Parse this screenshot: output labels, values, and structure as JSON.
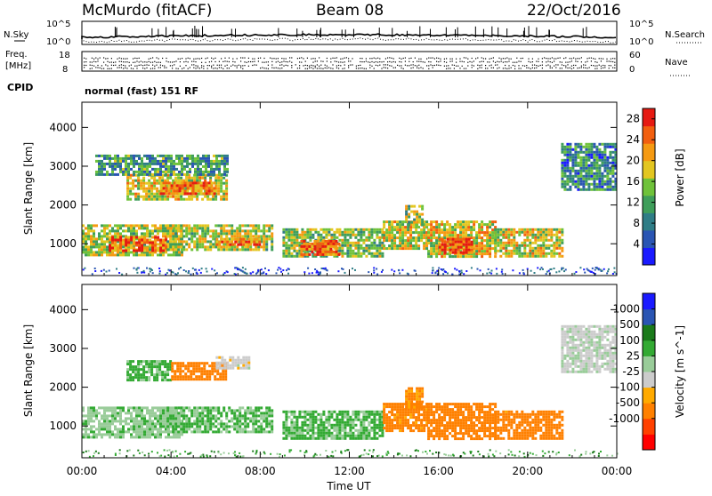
{
  "header": {
    "station": "McMurdo (fitACF)",
    "beam": "Beam 08",
    "date": "22/Oct/2016"
  },
  "strips": {
    "nsky_label": "N.Sky",
    "nsearch_label": "N.Search",
    "counts_top": "10^5",
    "counts_bottom": "10^0",
    "freq_label_1": "Freq.",
    "freq_label_2": "[MHz]",
    "freq_top": "18",
    "freq_bottom": "8",
    "nave_top": "60",
    "nave_bottom": "0",
    "nave_label": "Nave",
    "cpid_label": "CPID",
    "cpid_text": "normal (fast) 151 RF"
  },
  "colors": {
    "power_scale": [
      "#1a1aff",
      "#2a55b3",
      "#2f7d86",
      "#3f9e5a",
      "#6fc23a",
      "#e3c620",
      "#f59a12",
      "#f25f0f",
      "#e61a12"
    ],
    "velocity_scale": [
      "#ff0000",
      "#ff4000",
      "#ff8000",
      "#ffaa00",
      "#cccccc",
      "#99cc99",
      "#33aa33",
      "#1a7a1a",
      "#2a55b3",
      "#1a1aff"
    ]
  },
  "chart_data": [
    {
      "type": "heatmap",
      "name": "power",
      "ylabel": "Slant Range [km]",
      "xlabel": "Time UT",
      "x_ticks": [
        "00:00",
        "04:00",
        "08:00",
        "12:00",
        "16:00",
        "20:00",
        "00:00"
      ],
      "xlim_hours": [
        0,
        24
      ],
      "y_ticks": [
        1000,
        2000,
        3000,
        4000
      ],
      "ylim": [
        180,
        4650
      ],
      "colorbar": {
        "label": "Power [dB]",
        "ticks": [
          4,
          8,
          12,
          16,
          20,
          24,
          28
        ],
        "range": [
          0,
          30
        ]
      },
      "regions": [
        {
          "t0": 0.0,
          "t1": 4.5,
          "r0": 700,
          "r1": 1500,
          "level": 0.55
        },
        {
          "t0": 1.2,
          "t1": 3.8,
          "r0": 850,
          "r1": 1200,
          "level": 0.82
        },
        {
          "t0": 3.8,
          "t1": 8.5,
          "r0": 850,
          "r1": 1500,
          "level": 0.55
        },
        {
          "t0": 6.0,
          "t1": 8.0,
          "r0": 950,
          "r1": 1150,
          "level": 0.78
        },
        {
          "t0": 2.0,
          "t1": 6.5,
          "r0": 2150,
          "r1": 2800,
          "level": 0.58
        },
        {
          "t0": 3.5,
          "t1": 6.0,
          "r0": 2300,
          "r1": 2600,
          "level": 0.78
        },
        {
          "t0": 0.6,
          "t1": 6.5,
          "r0": 2800,
          "r1": 3300,
          "level": 0.35
        },
        {
          "t0": 9.0,
          "t1": 13.5,
          "r0": 650,
          "r1": 1400,
          "level": 0.5
        },
        {
          "t0": 9.8,
          "t1": 11.5,
          "r0": 750,
          "r1": 1100,
          "level": 0.85
        },
        {
          "t0": 13.5,
          "t1": 15.5,
          "r0": 850,
          "r1": 1600,
          "level": 0.58
        },
        {
          "t0": 14.5,
          "t1": 15.3,
          "r0": 1500,
          "r1": 2000,
          "level": 0.5
        },
        {
          "t0": 15.5,
          "t1": 18.5,
          "r0": 650,
          "r1": 1600,
          "level": 0.62
        },
        {
          "t0": 16.0,
          "t1": 17.5,
          "r0": 750,
          "r1": 1150,
          "level": 0.9
        },
        {
          "t0": 18.5,
          "t1": 21.5,
          "r0": 650,
          "r1": 1400,
          "level": 0.6
        },
        {
          "t0": 21.5,
          "t1": 24.0,
          "r0": 2400,
          "r1": 3600,
          "level": 0.3
        }
      ]
    },
    {
      "type": "heatmap",
      "name": "velocity",
      "ylabel": "Slant Range [km]",
      "xlabel": "Time UT",
      "x_ticks": [
        "00:00",
        "04:00",
        "08:00",
        "12:00",
        "16:00",
        "20:00",
        "00:00"
      ],
      "xlim_hours": [
        0,
        24
      ],
      "y_ticks": [
        1000,
        2000,
        3000,
        4000
      ],
      "ylim": [
        180,
        4650
      ],
      "colorbar": {
        "label": "Velocity [m s^-1]",
        "ticks": [
          "1000",
          "500",
          "100",
          "25",
          "-25",
          "-100",
          "-500",
          "-1000"
        ],
        "range": [
          -1000,
          1000
        ]
      },
      "regions": [
        {
          "t0": 0.0,
          "t1": 4.5,
          "r0": 700,
          "r1": 1500,
          "vel": 80
        },
        {
          "t0": 3.8,
          "t1": 8.5,
          "r0": 850,
          "r1": 1500,
          "vel": 100
        },
        {
          "t0": 2.0,
          "t1": 4.0,
          "r0": 2200,
          "r1": 2700,
          "vel": 120
        },
        {
          "t0": 4.0,
          "t1": 6.5,
          "r0": 2200,
          "r1": 2650,
          "vel": -200
        },
        {
          "t0": 6.0,
          "t1": 7.5,
          "r0": 2500,
          "r1": 2800,
          "vel": 0
        },
        {
          "t0": 9.0,
          "t1": 13.5,
          "r0": 650,
          "r1": 1400,
          "vel": 120
        },
        {
          "t0": 13.5,
          "t1": 15.5,
          "r0": 850,
          "r1": 1600,
          "vel": -150
        },
        {
          "t0": 14.5,
          "t1": 15.3,
          "r0": 1500,
          "r1": 2000,
          "vel": -120
        },
        {
          "t0": 15.5,
          "t1": 18.5,
          "r0": 650,
          "r1": 1600,
          "vel": -220
        },
        {
          "t0": 18.5,
          "t1": 21.5,
          "r0": 650,
          "r1": 1400,
          "vel": -180
        },
        {
          "t0": 21.5,
          "t1": 24.0,
          "r0": 2400,
          "r1": 3600,
          "vel": 10
        }
      ]
    }
  ]
}
